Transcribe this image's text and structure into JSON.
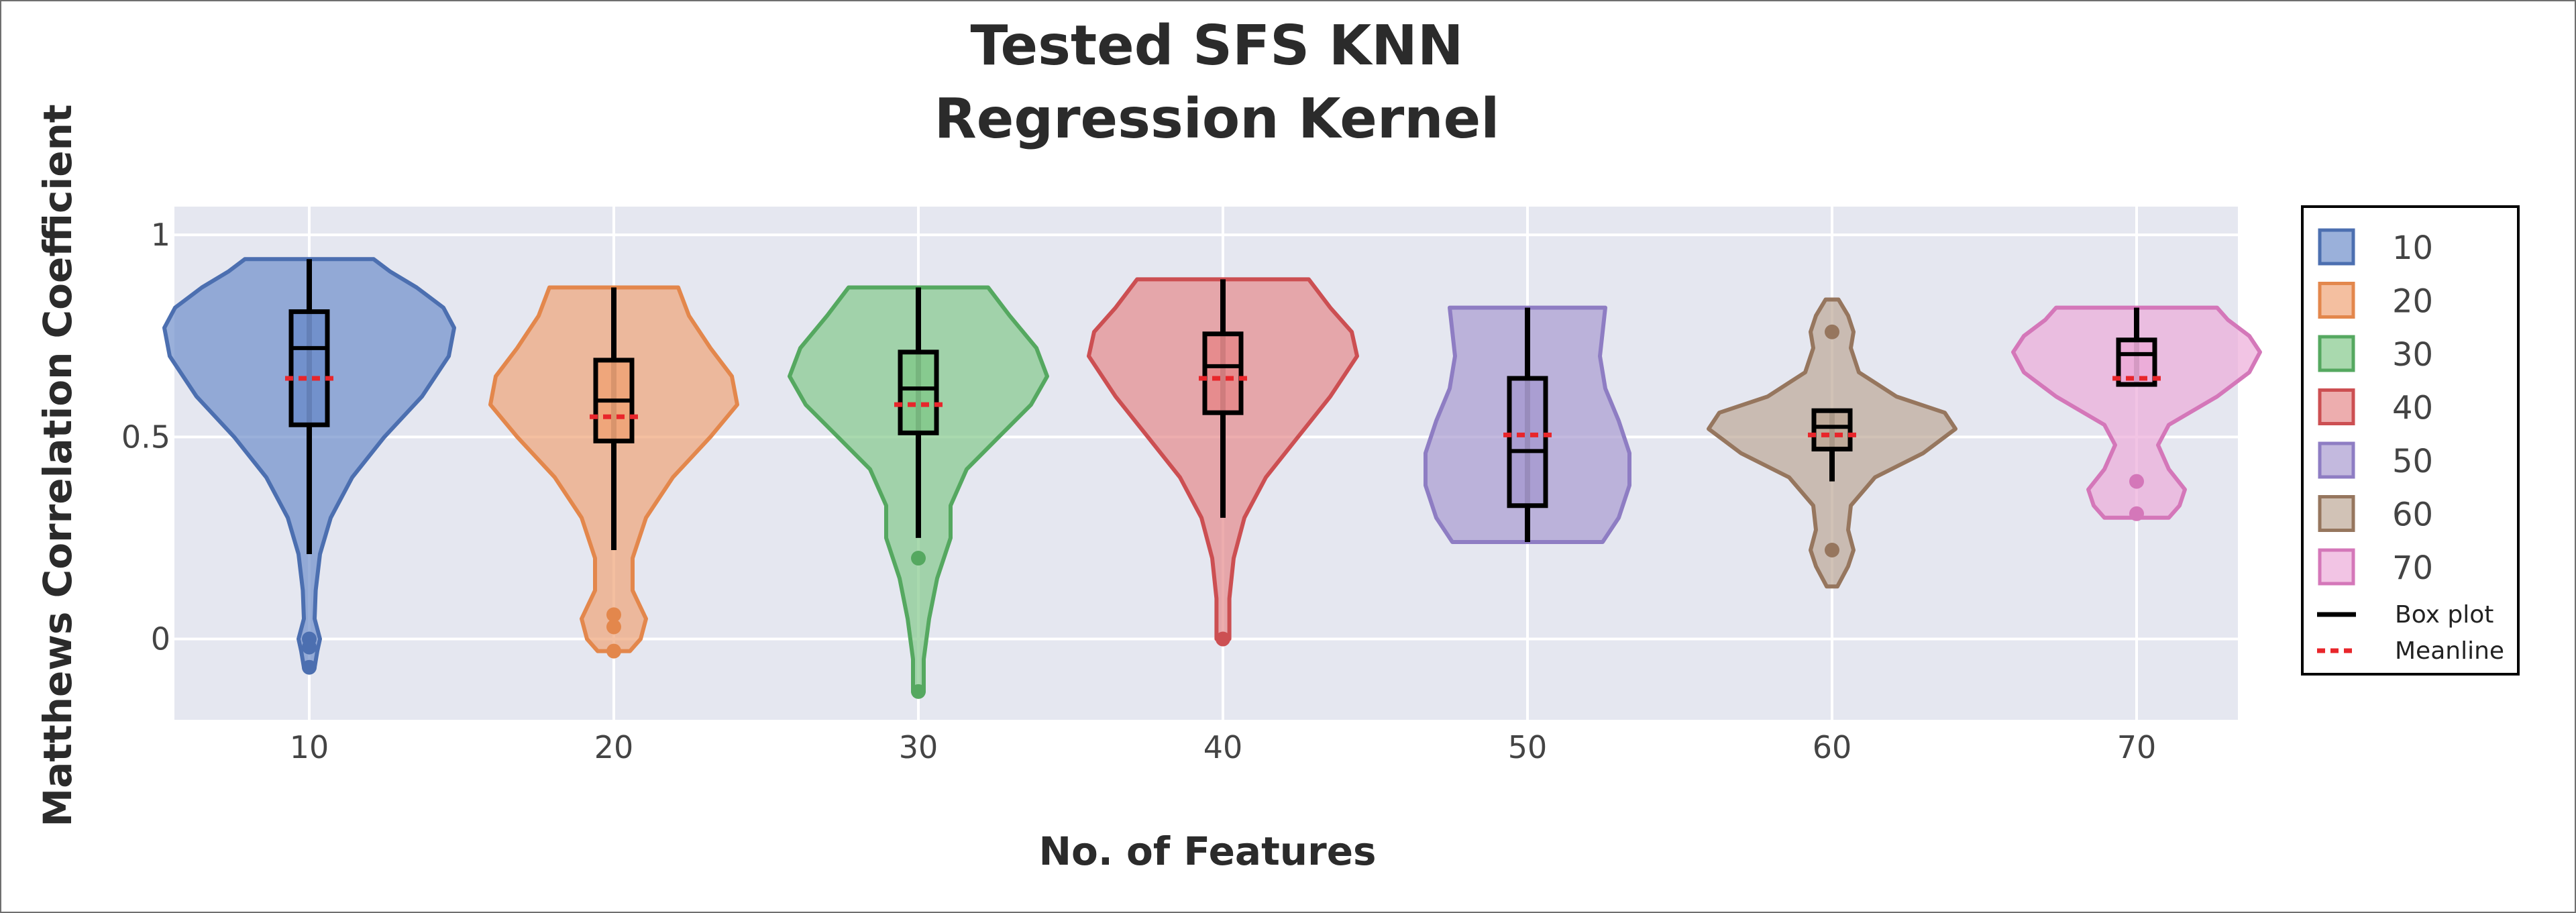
{
  "chart_data": {
    "type": "violin",
    "title_lines": [
      "Tested SFS KNN",
      "Regression Kernel"
    ],
    "xlabel": "No. of Features",
    "ylabel": "Matthews Correlation Coefficient",
    "categories": [
      "10",
      "20",
      "30",
      "40",
      "50",
      "60",
      "70"
    ],
    "y_ticks": [
      {
        "value": 0,
        "label": "0"
      },
      {
        "value": 0.5,
        "label": "0.5"
      },
      {
        "value": 1,
        "label": "1"
      }
    ],
    "ylim": [
      -0.2,
      1.07
    ],
    "grid": true,
    "plot_background": "#e5e7f0",
    "legend_position": "right",
    "legend_extra": [
      {
        "label": "Box plot",
        "color": "#000000",
        "style": "solid"
      },
      {
        "label": "Meanline",
        "color": "#e8262b",
        "style": "dashed"
      }
    ],
    "series": [
      {
        "name": "10",
        "fill": "#6f8ecb",
        "stroke": "#4c6fb0",
        "box": {
          "q1": 0.53,
          "median": 0.72,
          "q3": 0.81,
          "whisker_low": 0.21,
          "whisker_high": 0.94,
          "mean": 0.645
        },
        "outliers": [
          0.0,
          -0.02,
          -0.07
        ],
        "violin": [
          [
            -0.07,
            0.01
          ],
          [
            -0.03,
            0.015
          ],
          [
            0.0,
            0.02
          ],
          [
            0.05,
            0.01
          ],
          [
            0.12,
            0.012
          ],
          [
            0.21,
            0.02
          ],
          [
            0.3,
            0.04
          ],
          [
            0.4,
            0.08
          ],
          [
            0.5,
            0.14
          ],
          [
            0.6,
            0.21
          ],
          [
            0.7,
            0.26
          ],
          [
            0.77,
            0.27
          ],
          [
            0.82,
            0.25
          ],
          [
            0.87,
            0.2
          ],
          [
            0.91,
            0.15
          ],
          [
            0.94,
            0.12
          ]
        ]
      },
      {
        "name": "20",
        "fill": "#f0a478",
        "stroke": "#e3874c",
        "box": {
          "q1": 0.49,
          "median": 0.59,
          "q3": 0.69,
          "whisker_low": 0.22,
          "whisker_high": 0.87,
          "mean": 0.55
        },
        "outliers": [
          0.06,
          0.03,
          -0.03
        ],
        "violin": [
          [
            -0.03,
            0.03
          ],
          [
            0.0,
            0.05
          ],
          [
            0.05,
            0.06
          ],
          [
            0.12,
            0.035
          ],
          [
            0.2,
            0.035
          ],
          [
            0.3,
            0.06
          ],
          [
            0.4,
            0.11
          ],
          [
            0.5,
            0.18
          ],
          [
            0.58,
            0.23
          ],
          [
            0.65,
            0.22
          ],
          [
            0.72,
            0.18
          ],
          [
            0.8,
            0.14
          ],
          [
            0.87,
            0.12
          ]
        ]
      },
      {
        "name": "30",
        "fill": "#84c98c",
        "stroke": "#55a860",
        "box": {
          "q1": 0.51,
          "median": 0.62,
          "q3": 0.71,
          "whisker_low": 0.25,
          "whisker_high": 0.87,
          "mean": 0.58
        },
        "outliers": [
          0.2,
          -0.13
        ],
        "violin": [
          [
            -0.13,
            0.01
          ],
          [
            -0.05,
            0.01
          ],
          [
            0.05,
            0.02
          ],
          [
            0.15,
            0.035
          ],
          [
            0.25,
            0.06
          ],
          [
            0.33,
            0.06
          ],
          [
            0.42,
            0.09
          ],
          [
            0.5,
            0.15
          ],
          [
            0.58,
            0.21
          ],
          [
            0.65,
            0.24
          ],
          [
            0.72,
            0.22
          ],
          [
            0.8,
            0.17
          ],
          [
            0.87,
            0.13
          ]
        ]
      },
      {
        "name": "40",
        "fill": "#e58a8b",
        "stroke": "#cc4f52",
        "box": {
          "q1": 0.56,
          "median": 0.675,
          "q3": 0.755,
          "whisker_low": 0.3,
          "whisker_high": 0.89,
          "mean": 0.645
        },
        "outliers": [
          0.0
        ],
        "violin": [
          [
            0.0,
            0.012
          ],
          [
            0.1,
            0.012
          ],
          [
            0.2,
            0.02
          ],
          [
            0.3,
            0.04
          ],
          [
            0.4,
            0.08
          ],
          [
            0.5,
            0.14
          ],
          [
            0.6,
            0.2
          ],
          [
            0.7,
            0.25
          ],
          [
            0.76,
            0.24
          ],
          [
            0.82,
            0.2
          ],
          [
            0.89,
            0.16
          ]
        ]
      },
      {
        "name": "50",
        "fill": "#a99bd0",
        "stroke": "#8e7dc3",
        "box": {
          "q1": 0.33,
          "median": 0.465,
          "q3": 0.645,
          "whisker_low": 0.24,
          "whisker_high": 0.82,
          "mean": 0.505
        },
        "outliers": [],
        "violin": [
          [
            0.24,
            0.14
          ],
          [
            0.3,
            0.17
          ],
          [
            0.38,
            0.19
          ],
          [
            0.46,
            0.19
          ],
          [
            0.54,
            0.17
          ],
          [
            0.62,
            0.145
          ],
          [
            0.7,
            0.135
          ],
          [
            0.76,
            0.14
          ],
          [
            0.82,
            0.145
          ]
        ]
      },
      {
        "name": "60",
        "fill": "#bda897",
        "stroke": "#96765e",
        "box": {
          "q1": 0.47,
          "median": 0.525,
          "q3": 0.565,
          "whisker_low": 0.39,
          "whisker_high": 0.565,
          "mean": 0.505
        },
        "outliers": [
          0.76,
          0.22
        ],
        "violin": [
          [
            0.13,
            0.01
          ],
          [
            0.18,
            0.03
          ],
          [
            0.22,
            0.04
          ],
          [
            0.27,
            0.03
          ],
          [
            0.33,
            0.035
          ],
          [
            0.4,
            0.08
          ],
          [
            0.46,
            0.17
          ],
          [
            0.52,
            0.23
          ],
          [
            0.56,
            0.21
          ],
          [
            0.6,
            0.12
          ],
          [
            0.66,
            0.05
          ],
          [
            0.72,
            0.035
          ],
          [
            0.76,
            0.04
          ],
          [
            0.8,
            0.03
          ],
          [
            0.84,
            0.012
          ]
        ]
      },
      {
        "name": "70",
        "fill": "#ecabd8",
        "stroke": "#d477b9",
        "box": {
          "q1": 0.63,
          "median": 0.705,
          "q3": 0.74,
          "whisker_low": 0.63,
          "whisker_high": 0.82,
          "mean": 0.645
        },
        "outliers": [
          0.39,
          0.31
        ],
        "violin": [
          [
            0.3,
            0.06
          ],
          [
            0.33,
            0.08
          ],
          [
            0.37,
            0.09
          ],
          [
            0.42,
            0.06
          ],
          [
            0.48,
            0.04
          ],
          [
            0.53,
            0.06
          ],
          [
            0.6,
            0.15
          ],
          [
            0.66,
            0.21
          ],
          [
            0.71,
            0.23
          ],
          [
            0.75,
            0.21
          ],
          [
            0.79,
            0.17
          ],
          [
            0.82,
            0.15
          ]
        ]
      }
    ]
  }
}
